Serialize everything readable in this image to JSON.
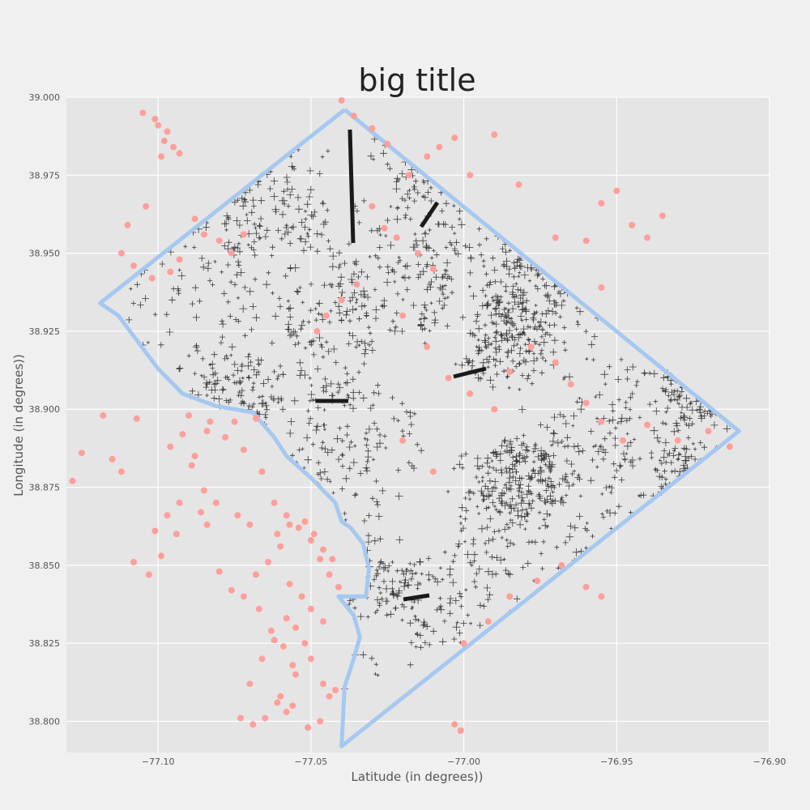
{
  "chart_data": {
    "type": "scatter",
    "title": "big title",
    "xlabel": "Latitude (in degrees))",
    "ylabel": "Longitude (in degrees))",
    "xlim": [
      -77.13,
      -76.9
    ],
    "ylim": [
      38.79,
      39.0
    ],
    "x_ticks": [
      "-77.10",
      "-77.05",
      "-77.00",
      "-76.95",
      "-76.90"
    ],
    "y_ticks": [
      "38.800",
      "38.825",
      "38.850",
      "38.875",
      "38.900",
      "38.925",
      "38.950",
      "38.975",
      "39.000"
    ],
    "grid": true,
    "colors": {
      "figure_bg": "#f0f0f0",
      "plot_bg": "#e5e5e5",
      "grid": "#ffffff",
      "boundary": "#a6c8f0",
      "marker_dense": "#1a1a1a",
      "points": "#ff9f9a"
    },
    "series": [
      {
        "kind": "boundary-line",
        "x": [
          -77.039,
          -77.119,
          -77.113,
          -77.1,
          -77.092,
          -77.081,
          -77.069,
          -77.062,
          -77.058,
          -77.05,
          -77.047,
          -77.042,
          -77.04,
          -77.037,
          -77.033,
          -77.031,
          -77.032,
          -77.036,
          -77.041,
          -77.036,
          -77.034,
          -77.036,
          -77.039,
          -77.04,
          -76.91,
          -77.039
        ],
        "y": [
          38.996,
          38.934,
          38.93,
          38.913,
          38.905,
          38.901,
          38.899,
          38.891,
          38.885,
          38.878,
          38.875,
          38.87,
          38.864,
          38.862,
          38.857,
          38.849,
          38.84,
          38.84,
          38.84,
          38.834,
          38.827,
          38.82,
          38.811,
          38.792,
          38.893,
          38.996
        ]
      },
      {
        "kind": "points",
        "x": [
          -77.105,
          -77.1,
          -77.097,
          -77.095,
          -77.093,
          -77.099,
          -77.101,
          -77.098,
          -77.104,
          -77.11,
          -77.112,
          -77.108,
          -77.102,
          -77.096,
          -77.093,
          -77.088,
          -77.085,
          -77.08,
          -77.076,
          -77.072,
          -77.09,
          -77.083,
          -77.075,
          -77.068,
          -77.118,
          -77.125,
          -77.128,
          -77.115,
          -77.107,
          -77.096,
          -77.092,
          -77.088,
          -77.084,
          -77.078,
          -77.072,
          -77.066,
          -77.062,
          -77.058,
          -77.054,
          -77.05,
          -77.047,
          -77.044,
          -77.041,
          -77.057,
          -77.061,
          -77.064,
          -77.068,
          -77.06,
          -77.052,
          -77.049,
          -77.046,
          -77.043,
          -77.07,
          -77.074,
          -77.081,
          -77.086,
          -77.094,
          -77.099,
          -77.103,
          -77.108,
          -77.112,
          -77.057,
          -77.053,
          -77.05,
          -77.046,
          -77.04,
          -77.036,
          -77.03,
          -77.025,
          -77.018,
          -77.012,
          -77.008,
          -77.003,
          -76.998,
          -76.99,
          -76.982,
          -76.97,
          -76.96,
          -76.955,
          -76.95,
          -76.945,
          -76.94,
          -76.935,
          -76.955,
          -77.03,
          -77.026,
          -77.022,
          -77.015,
          -77.01,
          -77.035,
          -77.04,
          -77.045,
          -77.048,
          -77.02,
          -77.012,
          -77.005,
          -76.998,
          -76.99,
          -76.985,
          -76.978,
          -76.97,
          -76.965,
          -76.96,
          -76.955,
          -76.948,
          -76.94,
          -76.93,
          -76.92,
          -76.913,
          -77.02,
          -77.01,
          -77.003,
          -77.001,
          -77.055,
          -77.052,
          -77.058,
          -77.062,
          -77.066,
          -77.07,
          -77.073,
          -77.06,
          -77.055,
          -77.05,
          -77.046,
          -77.044,
          -77.047,
          -77.051,
          -77.056,
          -77.058,
          -77.061,
          -77.065,
          -77.069,
          -77.042,
          -77.0,
          -76.992,
          -76.985,
          -76.976,
          -76.968,
          -76.96,
          -76.955,
          -77.085,
          -77.089,
          -77.093,
          -77.097,
          -77.101,
          -77.084,
          -77.08,
          -77.076,
          -77.072,
          -77.067,
          -77.063,
          -77.059,
          -77.056
        ],
        "y": [
          38.995,
          38.991,
          38.989,
          38.984,
          38.982,
          38.981,
          38.993,
          38.986,
          38.965,
          38.959,
          38.95,
          38.946,
          38.942,
          38.944,
          38.948,
          38.961,
          38.956,
          38.954,
          38.95,
          38.956,
          38.898,
          38.896,
          38.896,
          38.897,
          38.898,
          38.886,
          38.877,
          38.884,
          38.897,
          38.888,
          38.892,
          38.885,
          38.893,
          38.891,
          38.887,
          38.88,
          38.87,
          38.866,
          38.862,
          38.858,
          38.852,
          38.847,
          38.843,
          38.863,
          38.86,
          38.851,
          38.847,
          38.856,
          38.864,
          38.86,
          38.855,
          38.852,
          38.863,
          38.866,
          38.87,
          38.867,
          38.86,
          38.853,
          38.847,
          38.851,
          38.88,
          38.844,
          38.84,
          38.836,
          38.832,
          38.999,
          38.994,
          38.99,
          38.985,
          38.975,
          38.981,
          38.984,
          38.987,
          38.975,
          38.988,
          38.972,
          38.955,
          38.954,
          38.966,
          38.97,
          38.959,
          38.955,
          38.962,
          38.939,
          38.965,
          38.958,
          38.955,
          38.95,
          38.945,
          38.94,
          38.935,
          38.93,
          38.925,
          38.93,
          38.92,
          38.91,
          38.905,
          38.9,
          38.912,
          38.92,
          38.915,
          38.908,
          38.902,
          38.896,
          38.89,
          38.895,
          38.89,
          38.893,
          38.888,
          38.89,
          38.88,
          38.799,
          38.797,
          38.83,
          38.825,
          38.833,
          38.826,
          38.82,
          38.812,
          38.801,
          38.808,
          38.815,
          38.82,
          38.812,
          38.808,
          38.8,
          38.798,
          38.805,
          38.803,
          38.806,
          38.801,
          38.799,
          38.81,
          38.825,
          38.832,
          38.84,
          38.845,
          38.85,
          38.843,
          38.84,
          38.874,
          38.882,
          38.87,
          38.866,
          38.861,
          38.863,
          38.848,
          38.842,
          38.84,
          38.836,
          38.829,
          38.824,
          38.818
        ]
      },
      {
        "kind": "dense-markers",
        "marker": "+",
        "point_count": 0
      }
    ]
  }
}
